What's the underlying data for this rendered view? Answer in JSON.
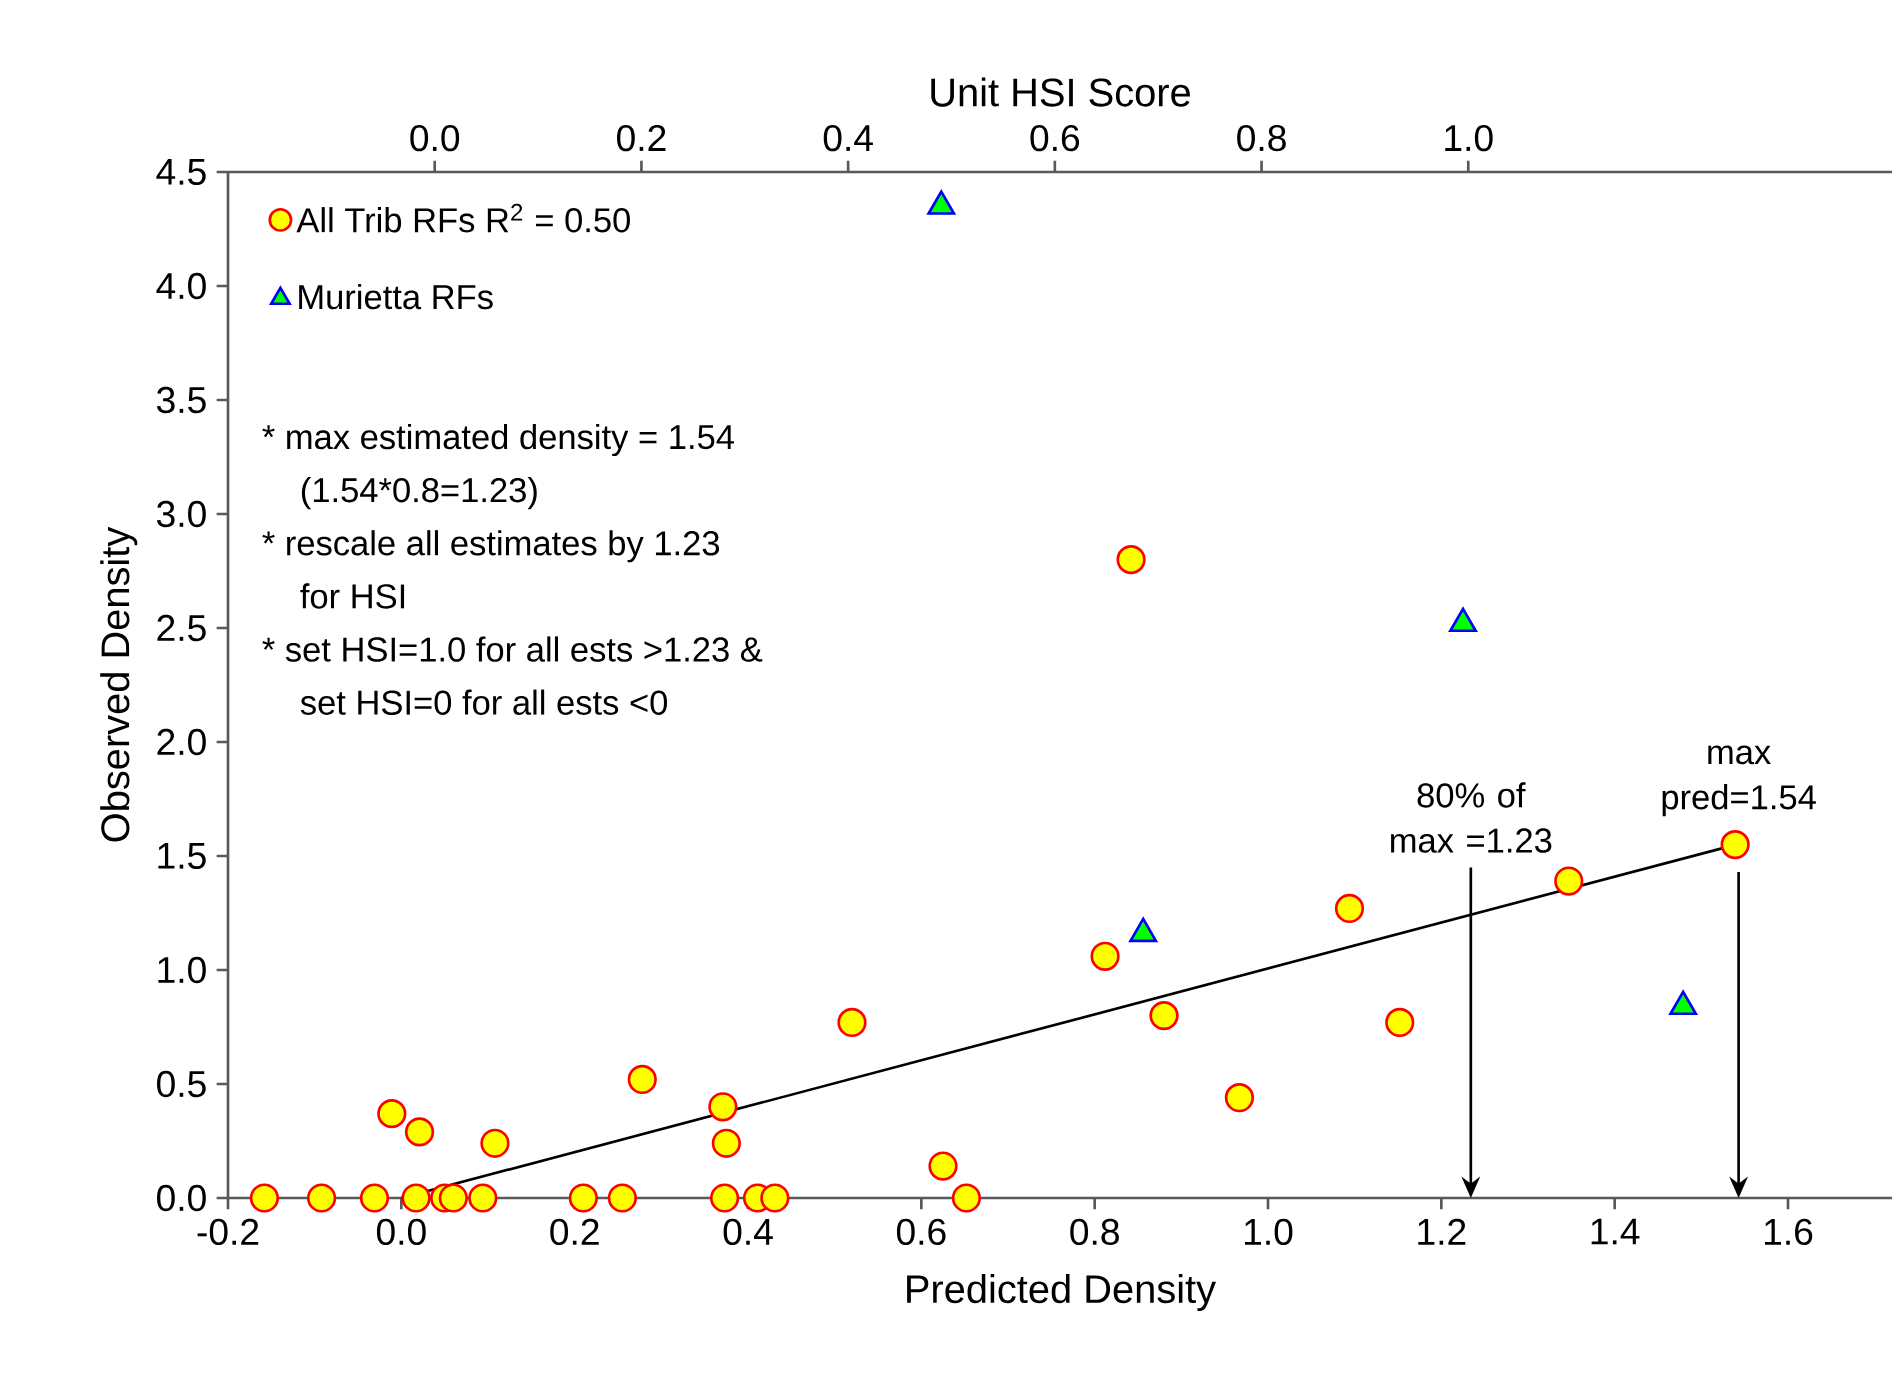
{
  "chart_data": {
    "type": "scatter",
    "xlabel": "Predicted Density",
    "ylabel": "Observed Density",
    "x2label": "Unit HSI Score",
    "xlim": [
      -0.2,
      1.72
    ],
    "ylim": [
      0,
      4.5
    ],
    "x2lim": [
      -0.2,
      1.41
    ],
    "xticks": [
      {
        "value": -0.2,
        "label": "-0.2"
      },
      {
        "value": 0,
        "label": "0.0"
      },
      {
        "value": 0.2,
        "label": "0.2"
      },
      {
        "value": 0.4,
        "label": "0.4"
      },
      {
        "value": 0.6,
        "label": "0.6"
      },
      {
        "value": 0.8,
        "label": "0.8"
      },
      {
        "value": 1.0,
        "label": "1.0"
      },
      {
        "value": 1.2,
        "label": "1.2"
      },
      {
        "value": 1.4,
        "label": "1.4"
      },
      {
        "value": 1.6,
        "label": "1.6"
      }
    ],
    "x2ticks": [
      {
        "value": 0,
        "label": "0.0"
      },
      {
        "value": 0.2,
        "label": "0.2"
      },
      {
        "value": 0.4,
        "label": "0.4"
      },
      {
        "value": 0.6,
        "label": "0.6"
      },
      {
        "value": 0.8,
        "label": "0.8"
      },
      {
        "value": 1.0,
        "label": "1.0"
      }
    ],
    "yticks": [
      {
        "value": 0,
        "label": "0.0"
      },
      {
        "value": 0.5,
        "label": "0.5"
      },
      {
        "value": 1.0,
        "label": "1.0"
      },
      {
        "value": 1.5,
        "label": "1.5"
      },
      {
        "value": 2.0,
        "label": "2.0"
      },
      {
        "value": 2.5,
        "label": "2.5"
      },
      {
        "value": 3.0,
        "label": "3.0"
      },
      {
        "value": 3.5,
        "label": "3.5"
      },
      {
        "value": 4.0,
        "label": "4.0"
      },
      {
        "value": 4.5,
        "label": "4.5"
      }
    ],
    "grid": false,
    "legend": "top left",
    "series": [
      {
        "name": "All Trib RFs   R$^{2}$ = 0.50",
        "marker": "circle",
        "color": "#ffff00",
        "x": [
          -0.158,
          -0.092,
          -0.031,
          0.017,
          0.05,
          0.06,
          0.094,
          0.21,
          0.255,
          0.373,
          0.411,
          0.431,
          0.652,
          -0.011,
          0.021,
          0.108,
          0.278,
          0.371,
          0.375,
          0.52,
          0.625,
          0.842,
          0.812,
          0.88,
          0.967,
          1.094,
          1.152,
          1.347,
          1.539
        ],
        "values": [
          0,
          0,
          0,
          0,
          0,
          0,
          0,
          0,
          0,
          0,
          0,
          0,
          0,
          0.37,
          0.29,
          0.24,
          0.52,
          0.4,
          0.24,
          0.77,
          0.14,
          2.8,
          1.06,
          0.8,
          0.44,
          1.27,
          0.77,
          1.39,
          1.55
        ]
      },
      {
        "name": "Murietta RFs",
        "marker": "triangle",
        "color": "#00ff00",
        "x": [
          0.623,
          0.856,
          1.225,
          1.479
        ],
        "values": [
          4.35,
          1.16,
          2.52,
          0.84
        ]
      },
      {
        "type": "line",
        "marker": "none",
        "color": "#000000",
        "line_style": "solid",
        "x": [
          0.0,
          1.54
        ],
        "values": [
          0.0,
          1.55
        ]
      }
    ],
    "annotations": [
      "* max estimated density = 1.54",
      "(1.54*0.8=1.23)",
      "* rescale all estimates  by 1.23",
      "for HSI",
      "* set HSI=1.0 for all ests >1.23  &",
      "set HSI=0 for all ests <0",
      "80% of max =1.23",
      "max pred=1.54"
    ]
  }
}
